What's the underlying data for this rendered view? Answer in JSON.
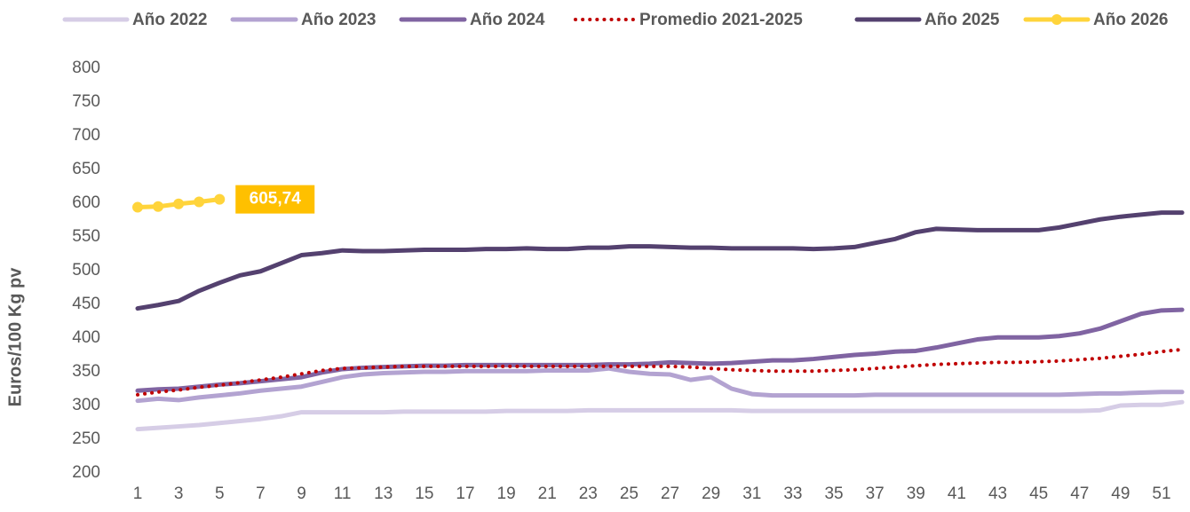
{
  "chart_data": {
    "type": "line",
    "y_label": "Euros/100 Kg pv",
    "categories": [
      1,
      null,
      3,
      null,
      5,
      null,
      7,
      null,
      9,
      null,
      11,
      null,
      13,
      null,
      15,
      null,
      17,
      null,
      19,
      null,
      21,
      null,
      23,
      null,
      25,
      null,
      27,
      null,
      29,
      null,
      31,
      null,
      33,
      null,
      35,
      null,
      37,
      null,
      39,
      null,
      41,
      null,
      43,
      null,
      45,
      null,
      47,
      null,
      49,
      null,
      51,
      null
    ],
    "ylim": [
      200,
      800
    ],
    "yticks": [
      200,
      250,
      300,
      350,
      400,
      450,
      500,
      550,
      600,
      650,
      700,
      750,
      800
    ],
    "grid": false,
    "legend": "top",
    "series": [
      {
        "name": "Año 2022",
        "color": "#d6cde6",
        "style": "solid",
        "values": [
          265,
          267,
          269,
          271,
          274,
          277,
          280,
          284,
          290,
          290,
          290,
          290,
          290,
          291,
          291,
          291,
          291,
          291,
          292,
          292,
          292,
          292,
          293,
          293,
          293,
          293,
          293,
          293,
          293,
          293,
          292,
          292,
          292,
          292,
          292,
          292,
          292,
          292,
          292,
          292,
          292,
          292,
          292,
          292,
          292,
          292,
          292,
          293,
          300,
          301,
          301,
          305
        ]
      },
      {
        "name": "Año 2023",
        "color": "#b3a3d1",
        "style": "solid",
        "values": [
          307,
          310,
          308,
          312,
          315,
          318,
          322,
          325,
          328,
          335,
          342,
          346,
          348,
          349,
          350,
          350,
          351,
          351,
          351,
          351,
          352,
          352,
          352,
          355,
          350,
          347,
          346,
          338,
          342,
          325,
          317,
          315,
          315,
          315,
          315,
          315,
          316,
          316,
          316,
          316,
          316,
          316,
          316,
          316,
          316,
          316,
          317,
          318,
          318,
          319,
          320,
          320
        ]
      },
      {
        "name": "Año 2024",
        "color": "#8064a2",
        "style": "solid",
        "values": [
          322,
          324,
          325,
          328,
          331,
          333,
          336,
          339,
          342,
          349,
          354,
          356,
          357,
          358,
          359,
          359,
          360,
          360,
          360,
          360,
          360,
          360,
          360,
          361,
          361,
          362,
          364,
          363,
          362,
          363,
          365,
          367,
          367,
          369,
          372,
          375,
          377,
          380,
          381,
          386,
          392,
          398,
          401,
          401,
          401,
          403,
          407,
          414,
          425,
          436,
          441,
          442
        ]
      },
      {
        "name": "Promedio 2021-2025",
        "color": "#c00000",
        "style": "dotted",
        "values": [
          316,
          320,
          323,
          327,
          330,
          334,
          338,
          342,
          347,
          352,
          355,
          356,
          357,
          358,
          358,
          358,
          358,
          358,
          358,
          358,
          358,
          358,
          358,
          358,
          358,
          358,
          358,
          357,
          355,
          353,
          352,
          351,
          351,
          351,
          352,
          353,
          355,
          357,
          359,
          361,
          362,
          363,
          364,
          364,
          365,
          366,
          368,
          370,
          373,
          376,
          380,
          383
        ]
      },
      {
        "name": "Año 2025",
        "color": "#54416f",
        "style": "solid",
        "values": [
          444,
          449,
          455,
          470,
          482,
          493,
          499,
          511,
          523,
          526,
          530,
          529,
          529,
          530,
          531,
          531,
          531,
          532,
          532,
          533,
          532,
          532,
          534,
          534,
          536,
          536,
          535,
          534,
          534,
          533,
          533,
          533,
          533,
          532,
          533,
          535,
          541,
          547,
          557,
          562,
          561,
          560,
          560,
          560,
          560,
          564,
          570,
          576,
          580,
          583,
          586,
          586
        ]
      },
      {
        "name": "Año 2026",
        "color": "#ffd43b",
        "style": "marker",
        "values": [
          594,
          595,
          599,
          602,
          605.74,
          null,
          null,
          null,
          null,
          null,
          null,
          null,
          null,
          null,
          null,
          null,
          null,
          null,
          null,
          null,
          null,
          null,
          null,
          null,
          null,
          null,
          null,
          null,
          null,
          null,
          null,
          null,
          null,
          null,
          null,
          null,
          null,
          null,
          null,
          null,
          null,
          null,
          null,
          null,
          null,
          null,
          null,
          null,
          null,
          null,
          null,
          null
        ],
        "value_labels": [
          null,
          null,
          null,
          null,
          "605,74",
          null,
          null,
          null,
          null,
          null,
          null,
          null,
          null,
          null,
          null,
          null,
          null,
          null,
          null,
          null,
          null,
          null,
          null,
          null,
          null,
          null,
          null,
          null,
          null,
          null,
          null,
          null,
          null,
          null,
          null,
          null,
          null,
          null,
          null,
          null,
          null,
          null,
          null,
          null,
          null,
          null,
          null,
          null,
          null,
          null,
          null,
          null
        ]
      }
    ]
  }
}
